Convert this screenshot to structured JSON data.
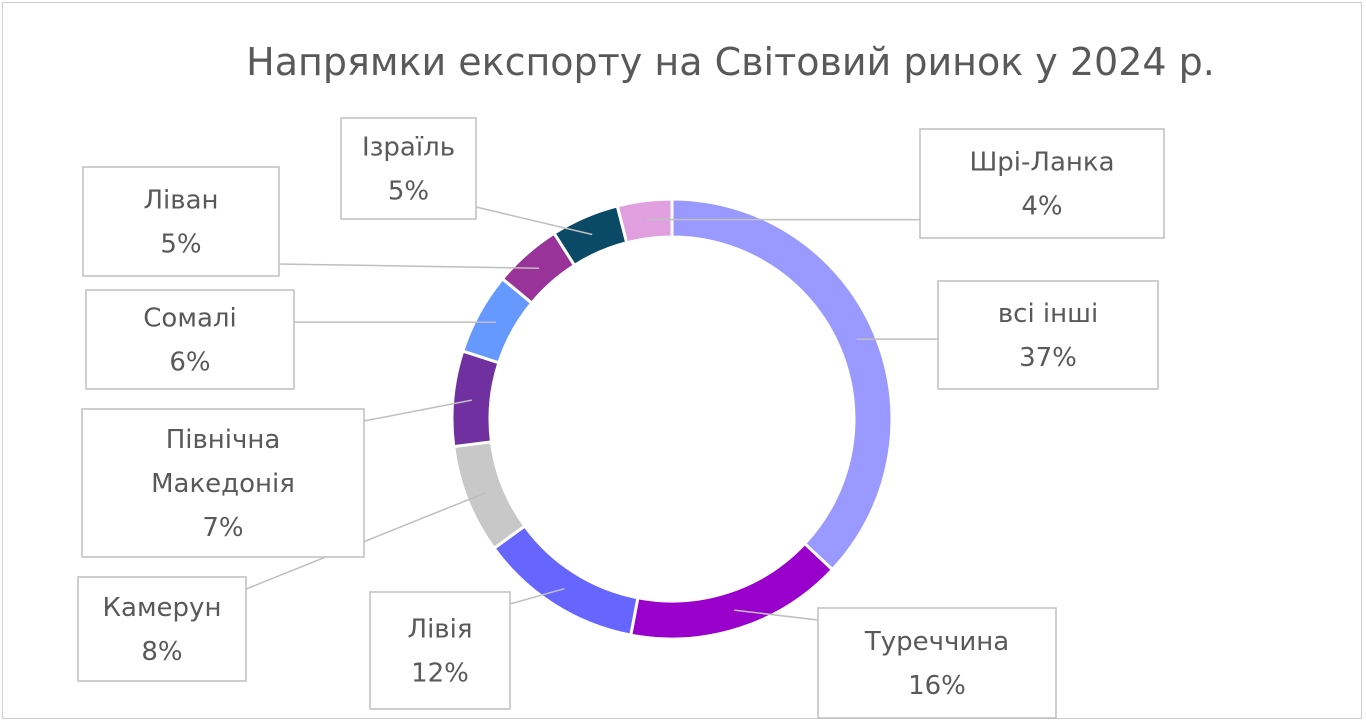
{
  "chart_data": {
    "type": "donut",
    "title": "Напрямки експорту на  Світовий ринок у 2024 р.",
    "legend": "none",
    "data_labels": "category and percent in callout boxes",
    "series": [
      {
        "slices": [
          {
            "label": "всі інші",
            "value": 37,
            "display": "37%",
            "color": "#9999FF"
          },
          {
            "label": "Туреччина",
            "value": 16,
            "display": "16%",
            "color": "#9900CC"
          },
          {
            "label": "Лівія",
            "value": 12,
            "display": "12%",
            "color": "#6666FF"
          },
          {
            "label": "Камерун",
            "value": 8,
            "display": "8%",
            "color": "#C8C8C8"
          },
          {
            "label": "Північна Македонія",
            "value": 7,
            "display": "7%",
            "color": "#7030A0"
          },
          {
            "label": "Сомалі",
            "value": 6,
            "display": "6%",
            "color": "#6699FF"
          },
          {
            "label": "Ліван",
            "value": 5,
            "display": "5%",
            "color": "#993399"
          },
          {
            "label": "Ізраїль",
            "value": 5,
            "display": "5%",
            "color": "#0B4A66"
          },
          {
            "label": "Шрі-Ланка",
            "value": 4,
            "display": "4%",
            "color": "#E0A0E0"
          }
        ]
      }
    ]
  }
}
